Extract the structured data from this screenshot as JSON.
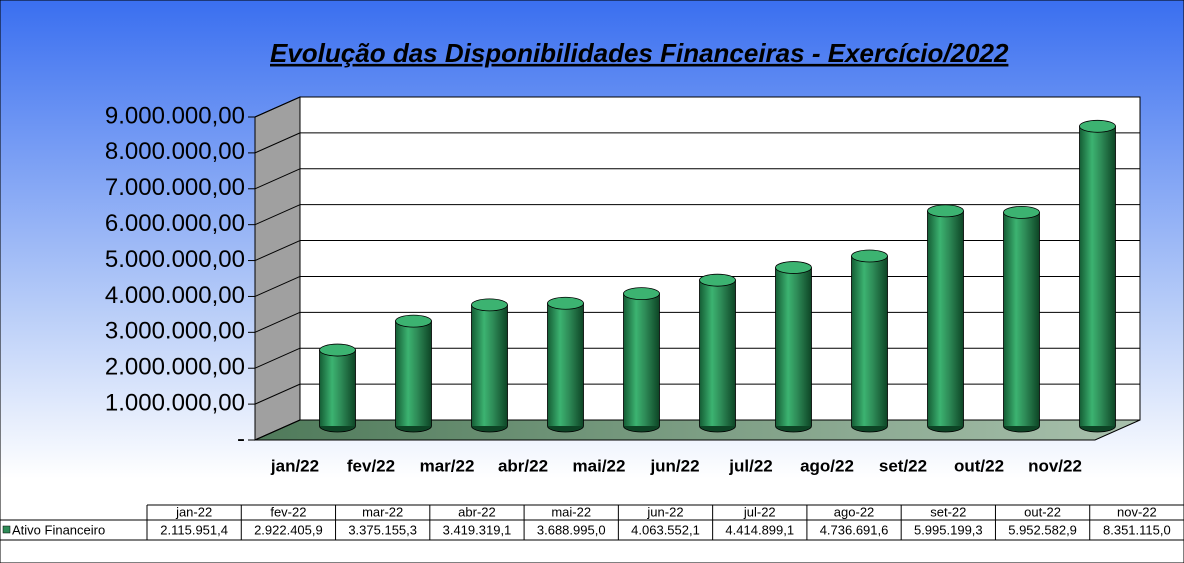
{
  "chart_data": {
    "type": "bar",
    "title": "Evolução das Disponibilidades  Financeiras - Exercício/2022",
    "categories": [
      "jan/22",
      "fev/22",
      "mar/22",
      "abr/22",
      "mai/22",
      "jun/22",
      "jul/22",
      "ago/22",
      "set/22",
      "out/22",
      "nov/22"
    ],
    "table_categories": [
      "jan-22",
      "fev-22",
      "mar-22",
      "abr-22",
      "mai-22",
      "jun-22",
      "jul-22",
      "ago-22",
      "set-22",
      "out-22",
      "nov-22"
    ],
    "series": [
      {
        "name": "Ativo Financeiro",
        "color": "#2e8b57",
        "values": [
          2115951.4,
          2922405.9,
          3375155.3,
          3419319.1,
          3688995.0,
          4063552.1,
          4414899.1,
          4736691.6,
          5995199.3,
          5952582.9,
          8351115.0
        ],
        "value_labels": [
          "2.115.951,4",
          "2.922.405,9",
          "3.375.155,3",
          "3.419.319,1",
          "3.688.995,0",
          "4.063.552,1",
          "4.414.899,1",
          "4.736.691,6",
          "5.995.199,3",
          "5.952.582,9",
          "8.351.115,0"
        ]
      }
    ],
    "ylim": [
      0,
      9000000
    ],
    "yticks": [
      {
        "value": 0,
        "label": "-"
      },
      {
        "value": 1000000,
        "label": "1.000.000,00"
      },
      {
        "value": 2000000,
        "label": "2.000.000,00"
      },
      {
        "value": 3000000,
        "label": "3.000.000,00"
      },
      {
        "value": 4000000,
        "label": "4.000.000,00"
      },
      {
        "value": 5000000,
        "label": "5.000.000,00"
      },
      {
        "value": 6000000,
        "label": "6.000.000,00"
      },
      {
        "value": 7000000,
        "label": "7.000.000,00"
      },
      {
        "value": 8000000,
        "label": "8.000.000,00"
      },
      {
        "value": 9000000,
        "label": "9.000.000,00"
      }
    ],
    "grid": true
  }
}
